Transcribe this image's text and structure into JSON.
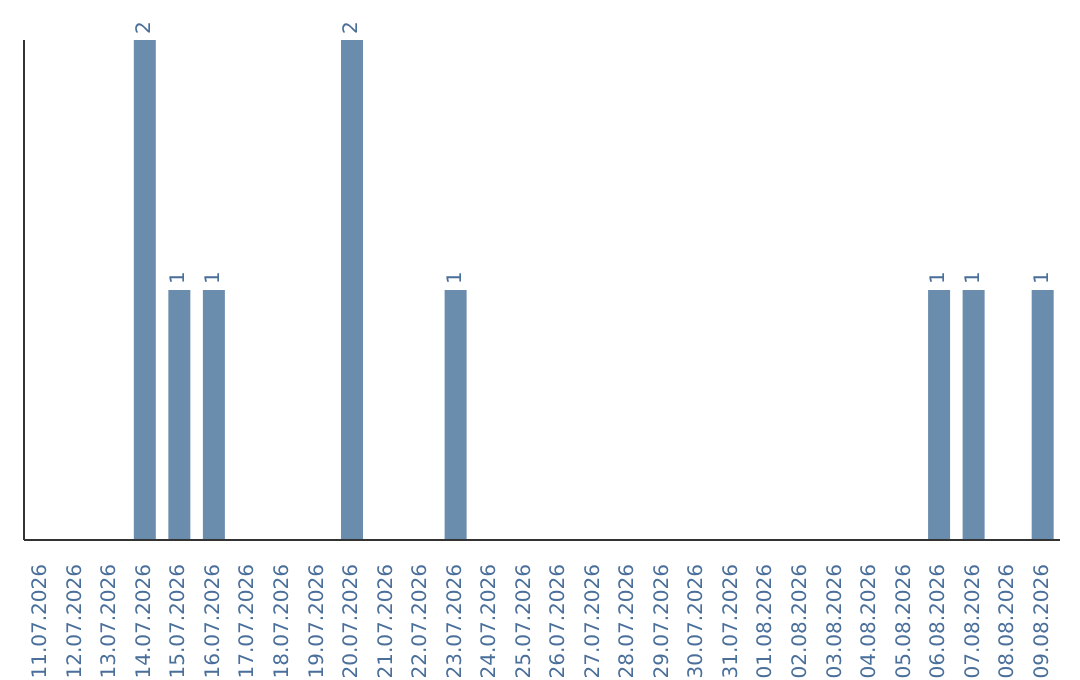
{
  "chart_data": {
    "type": "bar",
    "categories": [
      "11.07.2026",
      "12.07.2026",
      "13.07.2026",
      "14.07.2026",
      "15.07.2026",
      "16.07.2026",
      "17.07.2026",
      "18.07.2026",
      "19.07.2026",
      "20.07.2026",
      "21.07.2026",
      "22.07.2026",
      "23.07.2026",
      "24.07.2026",
      "25.07.2026",
      "26.07.2026",
      "27.07.2026",
      "28.07.2026",
      "29.07.2026",
      "30.07.2026",
      "31.07.2026",
      "01.08.2026",
      "02.08.2026",
      "03.08.2026",
      "04.08.2026",
      "05.08.2026",
      "06.08.2026",
      "07.08.2026",
      "08.08.2026",
      "09.08.2026"
    ],
    "values": [
      0,
      0,
      0,
      2,
      1,
      1,
      0,
      0,
      0,
      2,
      0,
      0,
      1,
      0,
      0,
      0,
      0,
      0,
      0,
      0,
      0,
      0,
      0,
      0,
      0,
      0,
      1,
      1,
      0,
      1
    ],
    "value_labels": [
      null,
      null,
      null,
      "2",
      "1",
      "1",
      null,
      null,
      null,
      "2",
      null,
      null,
      "1",
      null,
      null,
      null,
      null,
      null,
      null,
      null,
      null,
      null,
      null,
      null,
      null,
      null,
      "1",
      "1",
      null,
      "1"
    ],
    "color": "#6a8cad",
    "tick_labels": "x"
  }
}
